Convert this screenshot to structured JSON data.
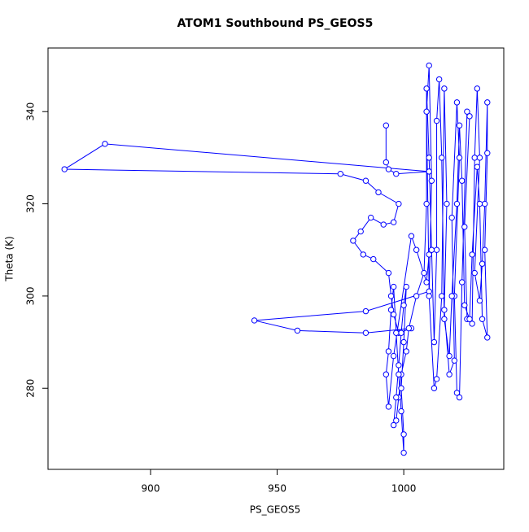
{
  "chart_data": {
    "type": "line",
    "title": "ATOM1 Southbound PS_GEOS5",
    "xlabel": "PS_GEOS5",
    "ylabel": "Theta (K)",
    "color": "#0000ff",
    "x": [
      993,
      993,
      994,
      997,
      1010,
      882,
      866,
      975,
      985,
      990,
      998,
      996,
      992,
      987,
      983,
      980,
      984,
      988,
      994,
      995,
      996,
      998,
      1003,
      985,
      958,
      941,
      985,
      1010,
      1009,
      1010,
      1011,
      1010,
      1012,
      1013,
      1015,
      1016,
      1017,
      1016,
      1018,
      1020,
      1019,
      1021,
      1022,
      1020,
      1021,
      1022,
      1023,
      1025,
      1026,
      1024,
      1025,
      1027,
      1028,
      1029,
      1030,
      1028,
      1030,
      1031,
      1032,
      1033,
      1033,
      1032,
      1033,
      1031,
      1030,
      1029,
      1027,
      1026,
      1024,
      1023,
      1022,
      1021,
      1019,
      1018,
      1016,
      1015,
      1014,
      1013,
      1013,
      1012,
      1011,
      1010,
      1009,
      1009,
      1008,
      1005,
      1002,
      1001,
      999,
      998,
      997,
      996,
      997,
      998,
      999,
      1000,
      1001,
      1000,
      999,
      1000,
      1000,
      999,
      998,
      997,
      996,
      995,
      994,
      993,
      994,
      996,
      1003,
      1005,
      1009,
      1010
    ],
    "values": [
      337,
      329,
      327.5,
      326.5,
      327,
      333,
      327.5,
      326.5,
      325,
      322.5,
      320,
      316,
      315.5,
      317,
      314,
      312,
      309,
      308,
      305,
      300,
      296,
      292,
      293,
      292,
      292.5,
      294.7,
      296.7,
      301,
      340,
      350,
      325,
      300,
      280,
      282,
      300,
      345,
      320,
      297,
      283,
      286,
      317,
      342,
      330,
      300,
      279,
      278,
      303,
      340,
      339,
      315,
      295,
      294,
      330,
      345,
      330,
      305,
      299,
      307,
      320,
      342,
      331,
      310,
      291,
      295,
      320,
      328,
      309,
      295,
      298,
      325,
      337,
      320,
      300,
      287,
      295,
      330,
      347,
      338,
      310,
      290,
      310,
      330,
      345,
      320,
      305,
      300,
      293,
      288,
      283,
      278,
      273,
      272,
      278,
      285,
      292,
      298,
      302,
      290,
      280,
      270,
      266,
      275,
      283,
      292,
      302,
      297,
      288,
      283,
      276,
      287,
      313,
      310,
      303,
      309
    ],
    "xlim": [
      859.5,
      1039.5
    ],
    "ylim": [
      262.4,
      353.8
    ],
    "xticks": [
      900,
      950,
      1000
    ],
    "yticks": [
      280,
      300,
      320,
      340
    ]
  }
}
